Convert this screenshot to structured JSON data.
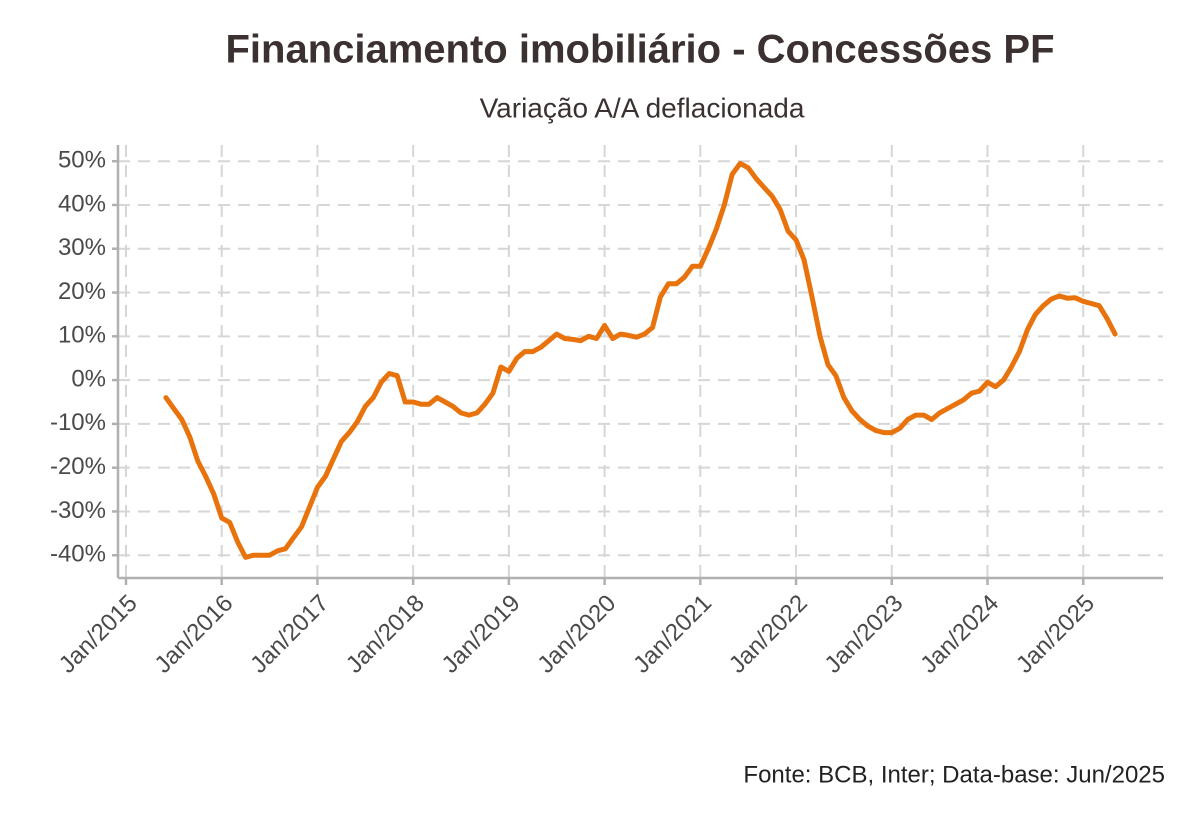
{
  "chart_data": {
    "type": "line",
    "title": "Financiamento imobiliário - Concessões PF",
    "subtitle": "Variação A/A deflacionada",
    "source": "Fonte: BCB, Inter; Data-base: Jun/2025",
    "x": [
      "2015-06",
      "2015-07",
      "2015-08",
      "2015-09",
      "2015-10",
      "2015-11",
      "2015-12",
      "2016-01",
      "2016-02",
      "2016-03",
      "2016-04",
      "2016-05",
      "2016-06",
      "2016-07",
      "2016-08",
      "2016-09",
      "2016-10",
      "2016-11",
      "2016-12",
      "2017-01",
      "2017-02",
      "2017-03",
      "2017-04",
      "2017-05",
      "2017-06",
      "2017-07",
      "2017-08",
      "2017-09",
      "2017-10",
      "2017-11",
      "2017-12",
      "2018-01",
      "2018-02",
      "2018-03",
      "2018-04",
      "2018-05",
      "2018-06",
      "2018-07",
      "2018-08",
      "2018-09",
      "2018-10",
      "2018-11",
      "2018-12",
      "2019-01",
      "2019-02",
      "2019-03",
      "2019-04",
      "2019-05",
      "2019-06",
      "2019-07",
      "2019-08",
      "2019-09",
      "2019-10",
      "2019-11",
      "2019-12",
      "2020-01",
      "2020-02",
      "2020-03",
      "2020-04",
      "2020-05",
      "2020-06",
      "2020-07",
      "2020-08",
      "2020-09",
      "2020-10",
      "2020-11",
      "2020-12",
      "2021-01",
      "2021-02",
      "2021-03",
      "2021-04",
      "2021-05",
      "2021-06",
      "2021-07",
      "2021-08",
      "2021-09",
      "2021-10",
      "2021-11",
      "2021-12",
      "2022-01",
      "2022-02",
      "2022-03",
      "2022-04",
      "2022-05",
      "2022-06",
      "2022-07",
      "2022-08",
      "2022-09",
      "2022-10",
      "2022-11",
      "2022-12",
      "2023-01",
      "2023-02",
      "2023-03",
      "2023-04",
      "2023-05",
      "2023-06",
      "2023-07",
      "2023-08",
      "2023-09",
      "2023-10",
      "2023-11",
      "2023-12",
      "2024-01",
      "2024-02",
      "2024-03",
      "2024-04",
      "2024-05",
      "2024-06",
      "2024-07",
      "2024-08",
      "2024-09",
      "2024-10",
      "2024-11",
      "2024-12",
      "2025-01",
      "2025-02",
      "2025-03",
      "2025-04",
      "2025-05"
    ],
    "series": [
      {
        "color": "#e8730c",
        "values": [
          -4,
          -6.5,
          -9,
          -13,
          -18.5,
          -22,
          -26,
          -31.5,
          -32.5,
          -37,
          -40.5,
          -40,
          -40,
          -40,
          -39,
          -38.5,
          -36,
          -33.5,
          -29,
          -24.5,
          -22,
          -18,
          -14,
          -12,
          -9.5,
          -6,
          -4,
          -0.5,
          1.5,
          1,
          -5,
          -5,
          -5.5,
          -5.5,
          -4,
          -5,
          -6,
          -7.5,
          -8,
          -7.5,
          -5.5,
          -3,
          3,
          2,
          5,
          6.5,
          6.5,
          7.5,
          9,
          10.5,
          9.5,
          9.3,
          9,
          10,
          9.5,
          12.5,
          9.5,
          10.5,
          10.2,
          9.8,
          10.5,
          12,
          19,
          22,
          22,
          23.5,
          26,
          26,
          30,
          34.5,
          40,
          47,
          49.5,
          48.5,
          46,
          44,
          42,
          39,
          34,
          32,
          27.5,
          19,
          10,
          3.5,
          1,
          -4,
          -7,
          -9,
          -10.5,
          -11.5,
          -12,
          -12,
          -11,
          -9,
          -8,
          -8,
          -9,
          -7.5,
          -6.5,
          -5.5,
          -4.5,
          -3,
          -2.5,
          -0.5,
          -1.5,
          0,
          3,
          6.5,
          11.5,
          15,
          17,
          18.5,
          19.2,
          18.7,
          18.8,
          18,
          17.5,
          17,
          14,
          10.5
        ]
      }
    ],
    "xlim": [
      "2014-12",
      "2025-11"
    ],
    "xticks": [
      {
        "value": "2015-01",
        "label": "Jan/2015"
      },
      {
        "value": "2016-01",
        "label": "Jan/2016"
      },
      {
        "value": "2017-01",
        "label": "Jan/2017"
      },
      {
        "value": "2018-01",
        "label": "Jan/2018"
      },
      {
        "value": "2019-01",
        "label": "Jan/2019"
      },
      {
        "value": "2020-01",
        "label": "Jan/2020"
      },
      {
        "value": "2021-01",
        "label": "Jan/2021"
      },
      {
        "value": "2022-01",
        "label": "Jan/2022"
      },
      {
        "value": "2023-01",
        "label": "Jan/2023"
      },
      {
        "value": "2024-01",
        "label": "Jan/2024"
      },
      {
        "value": "2025-01",
        "label": "Jan/2025"
      }
    ],
    "ylim": [
      -45.2,
      53.7
    ],
    "yticks": [
      {
        "value": -40,
        "label": "-40%"
      },
      {
        "value": -30,
        "label": "-30%"
      },
      {
        "value": -20,
        "label": "-20%"
      },
      {
        "value": -10,
        "label": "-10%"
      },
      {
        "value": 0,
        "label": "0%"
      },
      {
        "value": 10,
        "label": "10%"
      },
      {
        "value": 20,
        "label": "20%"
      },
      {
        "value": 30,
        "label": "30%"
      },
      {
        "value": 40,
        "label": "40%"
      },
      {
        "value": 50,
        "label": "50%"
      }
    ],
    "grid": true
  }
}
